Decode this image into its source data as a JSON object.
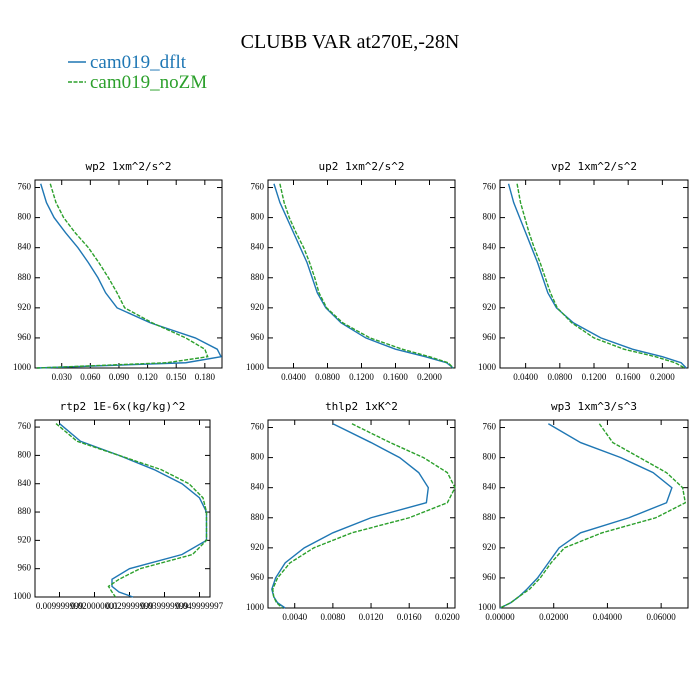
{
  "title": "CLUBB VAR at270E,-28N",
  "chart_data": [
    {
      "type": "line",
      "title": "wp2   1xm^2/s^2",
      "y": [
        755,
        780,
        800,
        820,
        840,
        860,
        880,
        900,
        920,
        940,
        960,
        975,
        985,
        993,
        1000
      ],
      "ylim": [
        1000,
        750
      ],
      "yticks": [
        760,
        800,
        840,
        880,
        920,
        960,
        1000
      ],
      "xlim": [
        0.002,
        0.198
      ],
      "xticks": [
        {
          "value": 0.03,
          "label": "0.030"
        },
        {
          "value": 0.06,
          "label": "0.060"
        },
        {
          "value": 0.09,
          "label": "0.090"
        },
        {
          "value": 0.12,
          "label": "0.120"
        },
        {
          "value": 0.15,
          "label": "0.150"
        },
        {
          "value": 0.18,
          "label": "0.180"
        }
      ],
      "series": [
        {
          "name": "cam019_dflt",
          "color": "#1f77b4",
          "values": [
            0.008,
            0.014,
            0.022,
            0.034,
            0.047,
            0.058,
            0.068,
            0.076,
            0.088,
            0.123,
            0.17,
            0.193,
            0.197,
            0.16,
            0.004
          ]
        },
        {
          "name": "cam019_noZM",
          "color": "#2ca02c",
          "values": [
            0.018,
            0.024,
            0.032,
            0.044,
            0.058,
            0.069,
            0.079,
            0.088,
            0.096,
            0.125,
            0.16,
            0.18,
            0.183,
            0.14,
            0.004
          ]
        }
      ]
    },
    {
      "type": "line",
      "title": "up2   1xm^2/s^2",
      "y": [
        755,
        780,
        800,
        820,
        840,
        860,
        880,
        900,
        920,
        940,
        960,
        975,
        985,
        993,
        1000
      ],
      "ylim": [
        1000,
        750
      ],
      "yticks": [
        760,
        800,
        840,
        880,
        920,
        960,
        1000
      ],
      "xlim": [
        0.01,
        0.23
      ],
      "xticks": [
        {
          "value": 0.04,
          "label": "0.0400"
        },
        {
          "value": 0.08,
          "label": "0.0800"
        },
        {
          "value": 0.12,
          "label": "0.1200"
        },
        {
          "value": 0.16,
          "label": "0.1600"
        },
        {
          "value": 0.2,
          "label": "0.2000"
        }
      ],
      "series": [
        {
          "name": "cam019_dflt",
          "color": "#1f77b4",
          "values": [
            0.017,
            0.024,
            0.032,
            0.04,
            0.048,
            0.056,
            0.062,
            0.068,
            0.078,
            0.096,
            0.125,
            0.16,
            0.195,
            0.22,
            0.228
          ]
        },
        {
          "name": "cam019_noZM",
          "color": "#2ca02c",
          "values": [
            0.024,
            0.029,
            0.035,
            0.043,
            0.052,
            0.059,
            0.065,
            0.07,
            0.079,
            0.098,
            0.13,
            0.168,
            0.2,
            0.222,
            0.228
          ]
        }
      ]
    },
    {
      "type": "line",
      "title": "vp2   1xm^2/s^2",
      "y": [
        755,
        780,
        800,
        820,
        840,
        860,
        880,
        900,
        920,
        940,
        960,
        975,
        985,
        993,
        1000
      ],
      "ylim": [
        1000,
        750
      ],
      "yticks": [
        760,
        800,
        840,
        880,
        920,
        960,
        1000
      ],
      "xlim": [
        0.01,
        0.23
      ],
      "xticks": [
        {
          "value": 0.04,
          "label": "0.0400"
        },
        {
          "value": 0.08,
          "label": "0.0800"
        },
        {
          "value": 0.12,
          "label": "0.1200"
        },
        {
          "value": 0.16,
          "label": "0.1600"
        },
        {
          "value": 0.2,
          "label": "0.2000"
        }
      ],
      "series": [
        {
          "name": "cam019_dflt",
          "color": "#1f77b4",
          "values": [
            0.02,
            0.026,
            0.033,
            0.04,
            0.047,
            0.054,
            0.06,
            0.066,
            0.076,
            0.096,
            0.128,
            0.165,
            0.2,
            0.222,
            0.228
          ]
        },
        {
          "name": "cam019_noZM",
          "color": "#2ca02c",
          "values": [
            0.03,
            0.034,
            0.039,
            0.044,
            0.05,
            0.057,
            0.063,
            0.069,
            0.077,
            0.094,
            0.12,
            0.155,
            0.192,
            0.215,
            0.226
          ]
        }
      ]
    },
    {
      "type": "line",
      "title": "rtp2   1E-6x(kg/kg)^2",
      "y": [
        755,
        780,
        800,
        820,
        840,
        860,
        880,
        900,
        920,
        940,
        960,
        975,
        985,
        993,
        1000
      ],
      "ylim": [
        1000,
        750
      ],
      "yticks": [
        760,
        800,
        840,
        880,
        920,
        960,
        1000
      ],
      "xlim": [
        0.003,
        0.053
      ],
      "xticks": [
        {
          "value": 0.01,
          "label": "0.009999999"
        },
        {
          "value": 0.02,
          "label": "0.020000001"
        },
        {
          "value": 0.03,
          "label": "0.029999999"
        },
        {
          "value": 0.04,
          "label": "0.039999999"
        },
        {
          "value": 0.05,
          "label": "0.049999997"
        }
      ],
      "series": [
        {
          "name": "cam019_dflt",
          "color": "#1f77b4",
          "values": [
            0.01,
            0.016,
            0.027,
            0.037,
            0.045,
            0.05,
            0.052,
            0.052,
            0.052,
            0.045,
            0.03,
            0.025,
            0.025,
            0.027,
            0.031
          ]
        },
        {
          "name": "cam019_noZM",
          "color": "#2ca02c",
          "values": [
            0.009,
            0.015,
            0.027,
            0.039,
            0.047,
            0.051,
            0.052,
            0.052,
            0.052,
            0.048,
            0.033,
            0.027,
            0.024,
            0.025,
            0.026
          ]
        }
      ]
    },
    {
      "type": "line",
      "title": "thlp2   1xK^2",
      "y": [
        755,
        780,
        800,
        820,
        840,
        860,
        880,
        900,
        920,
        940,
        960,
        975,
        985,
        993,
        1000
      ],
      "ylim": [
        1000,
        750
      ],
      "yticks": [
        760,
        800,
        840,
        880,
        920,
        960,
        1000
      ],
      "xlim": [
        0.0012,
        0.0208
      ],
      "xticks": [
        {
          "value": 0.004,
          "label": "0.0040"
        },
        {
          "value": 0.008,
          "label": "0.0080"
        },
        {
          "value": 0.012,
          "label": "0.0120"
        },
        {
          "value": 0.016,
          "label": "0.0160"
        },
        {
          "value": 0.02,
          "label": "0.0200"
        }
      ],
      "series": [
        {
          "name": "cam019_dflt",
          "color": "#1f77b4",
          "values": [
            0.008,
            0.012,
            0.015,
            0.017,
            0.018,
            0.0178,
            0.012,
            0.008,
            0.005,
            0.003,
            0.002,
            0.0016,
            0.0018,
            0.0022,
            0.003
          ]
        },
        {
          "name": "cam019_noZM",
          "color": "#2ca02c",
          "values": [
            0.01,
            0.014,
            0.0175,
            0.02,
            0.0208,
            0.02,
            0.016,
            0.01,
            0.006,
            0.0035,
            0.0022,
            0.0017,
            0.0018,
            0.0021,
            0.0027
          ]
        }
      ]
    },
    {
      "type": "line",
      "title": "wp3   1xm^3/s^3",
      "y": [
        755,
        780,
        800,
        820,
        840,
        860,
        880,
        900,
        920,
        940,
        960,
        975,
        985,
        993,
        1000
      ],
      "ylim": [
        1000,
        750
      ],
      "yticks": [
        760,
        800,
        840,
        880,
        920,
        960,
        1000
      ],
      "xlim": [
        0,
        0.07
      ],
      "xticks": [
        {
          "value": 0,
          "label": "0.00000"
        },
        {
          "value": 0.02,
          "label": "0.02000"
        },
        {
          "value": 0.04,
          "label": "0.04000"
        },
        {
          "value": 0.06,
          "label": "0.06000"
        }
      ],
      "series": [
        {
          "name": "cam019_dflt",
          "color": "#1f77b4",
          "values": [
            0.018,
            0.03,
            0.045,
            0.057,
            0.064,
            0.062,
            0.048,
            0.03,
            0.022,
            0.018,
            0.014,
            0.01,
            0.007,
            0.004,
            0
          ]
        },
        {
          "name": "cam019_noZM",
          "color": "#2ca02c",
          "values": [
            0.037,
            0.042,
            0.052,
            0.062,
            0.068,
            0.069,
            0.058,
            0.038,
            0.024,
            0.019,
            0.015,
            0.011,
            0.007,
            0.004,
            0
          ]
        }
      ]
    }
  ]
}
